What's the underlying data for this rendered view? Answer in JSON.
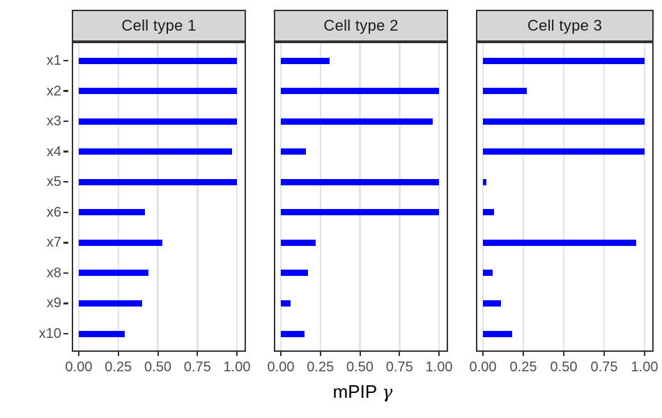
{
  "chart_data": {
    "type": "bar",
    "orientation": "horizontal",
    "title": "",
    "xlabel": "mPIP γ",
    "xlabel_parts": {
      "text": "mPIP",
      "symbol": "γ"
    },
    "ylabel": "",
    "xlim": [
      0,
      1
    ],
    "grid": true,
    "legend": false,
    "x_ticks": [
      "0.00",
      "0.25",
      "0.50",
      "0.75",
      "1.00"
    ],
    "x_tick_values": [
      0,
      0.25,
      0.5,
      0.75,
      1
    ],
    "categories": [
      "x1",
      "x2",
      "x3",
      "x4",
      "x5",
      "x6",
      "x7",
      "x8",
      "x9",
      "x10"
    ],
    "facets": [
      {
        "label": "Cell type 1",
        "values": [
          1.0,
          1.0,
          1.0,
          0.97,
          1.0,
          0.42,
          0.53,
          0.44,
          0.4,
          0.29
        ]
      },
      {
        "label": "Cell type 2",
        "values": [
          0.31,
          1.0,
          0.96,
          0.16,
          1.0,
          1.0,
          0.22,
          0.17,
          0.06,
          0.15
        ]
      },
      {
        "label": "Cell type 3",
        "values": [
          1.0,
          0.27,
          1.0,
          1.0,
          0.02,
          0.07,
          0.95,
          0.06,
          0.11,
          0.18
        ]
      }
    ],
    "style": {
      "bar_color": "#0101FC",
      "grid_color": "#E3E3E3",
      "panel_border_color": "#333333",
      "strip_bg_color": "#D6D6D6",
      "strip_text_color": "#1A1A1A",
      "axis_text_color": "#4D4D4D",
      "axis_title_color": "#000000",
      "background_color": "#FFFFFF"
    }
  }
}
